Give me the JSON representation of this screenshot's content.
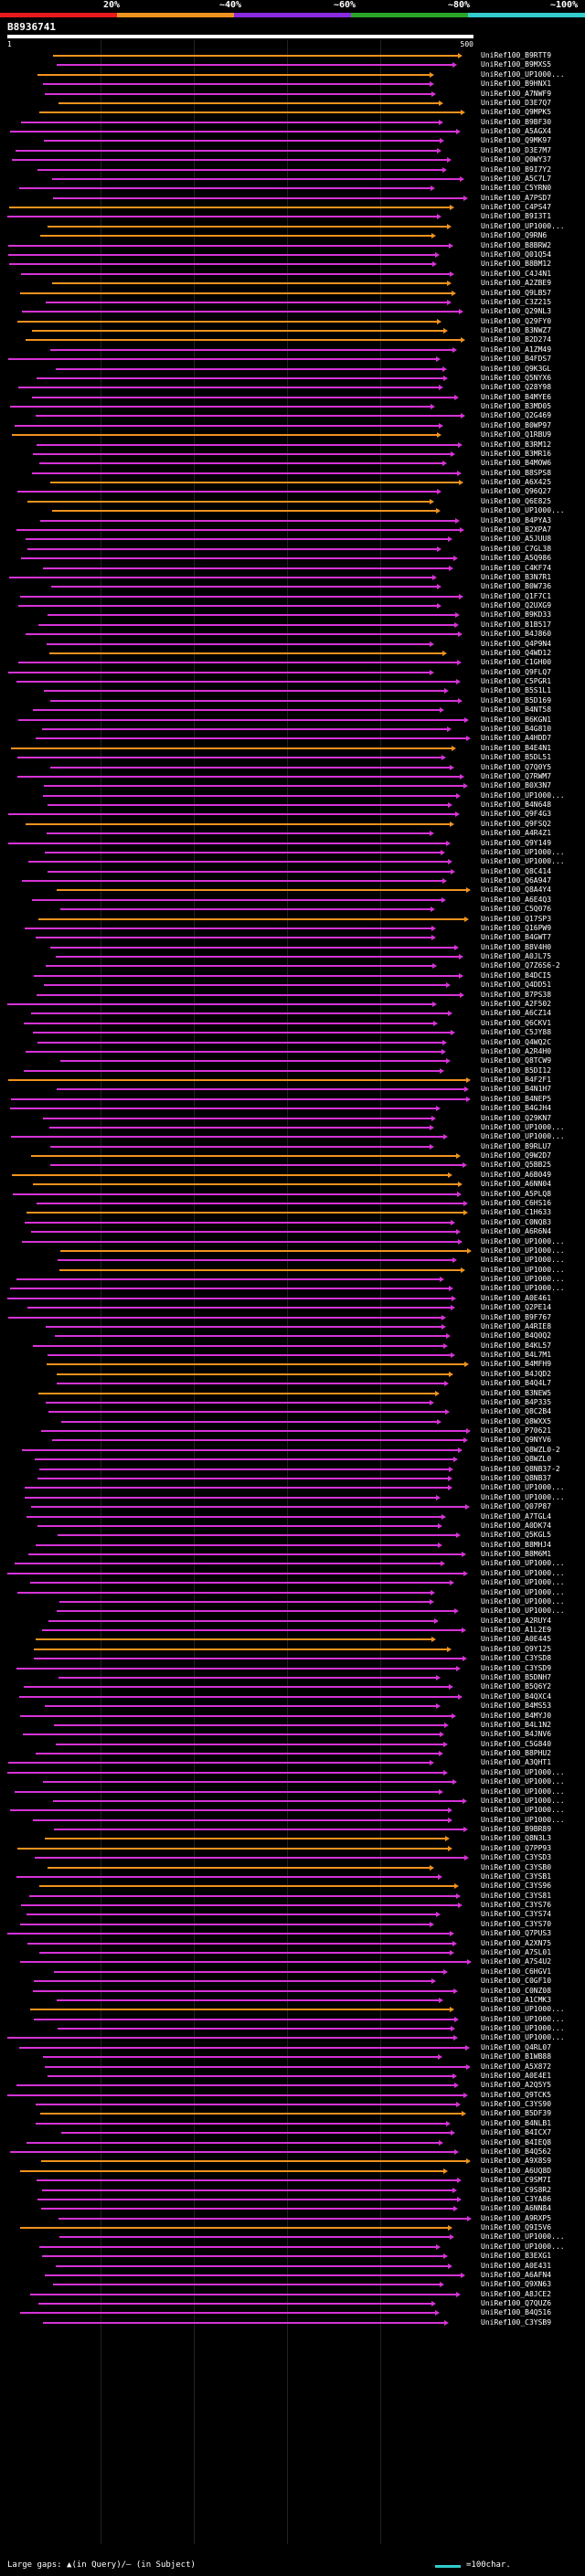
{
  "legend": {
    "labels": [
      "20%",
      "~40%",
      "~60%",
      "~80%",
      "~100%"
    ],
    "colors": [
      "#e8191e",
      "#f0921e",
      "#8a2be2",
      "#2aa52a",
      "#33cccc"
    ]
  },
  "query": {
    "id": "B8936741",
    "ruler_start": "1",
    "ruler_end": "500"
  },
  "hits": [
    "UniRef100_B9RTT9",
    "UniRef100_B9MXS5",
    "UniRef100_UP1000...",
    "UniRef100_B9HNX1",
    "UniRef100_A7NWF9",
    "UniRef100_D3E7Q7",
    "UniRef100_Q9MPK5",
    "UniRef100_B9BF30",
    "UniRef100_A5AGX4",
    "UniRef100_Q9MK97",
    "UniRef100_D3E7M7",
    "UniRef100_Q0WY37",
    "UniRef100_B9I7Y2",
    "UniRef100_A5C7L7",
    "UniRef100_C5YRN0",
    "UniRef100_A7PSD7",
    "UniRef100_C4PS47",
    "UniRef100_B9I3T1",
    "UniRef100_UP1000...",
    "UniRef100_Q9RN6",
    "UniRef100_B8BRW2",
    "UniRef100_Q01Q54",
    "UniRef100_B8BM12",
    "UniRef100_C4J4N1",
    "UniRef100_A2ZBE9",
    "UniRef100_Q9LB57",
    "UniRef100_C3Z215",
    "UniRef100_Q29NL3",
    "UniRef100_Q29FY0",
    "UniRef100_B3NWZ7",
    "UniRef100_B2D274",
    "UniRef100_A1ZM49",
    "UniRef100_B4FDS7",
    "UniRef100_Q9K3GL",
    "UniRef100_Q5NYX6",
    "UniRef100_Q28Y98",
    "UniRef100_B4MYE6",
    "UniRef100_B3MD05",
    "UniRef100_Q2G469",
    "UniRef100_B0WP97",
    "UniRef100_Q1RBU9",
    "UniRef100_B3RM12",
    "UniRef100_B3MR16",
    "UniRef100_B4MOW6",
    "UniRef100_B8SPS8",
    "UniRef100_A6X425",
    "UniRef100_Q96Q27",
    "UniRef100_Q6E825",
    "UniRef100_UP1000...",
    "UniRef100_B4PYA3",
    "UniRef100_B2XPA7",
    "UniRef100_A5JUU8",
    "UniRef100_C7GL38",
    "UniRef100_A5Q986",
    "UniRef100_C4KF74",
    "UniRef100_B3N7R1",
    "UniRef100_B0W736",
    "UniRef100_Q1F7C1",
    "UniRef100_Q2UXG9",
    "UniRef100_B9KD33",
    "UniRef100_B1B517",
    "UniRef100_B4J860",
    "UniRef100_Q4P9N4",
    "UniRef100_Q4WD12",
    "UniRef100_C1GH00",
    "UniRef100_Q9FLQ7",
    "UniRef100_C5PGR1",
    "UniRef100_B5S1L1",
    "UniRef100_B5D169",
    "UniRef100_B4NT58",
    "UniRef100_B6KGN1",
    "UniRef100_B4G810",
    "UniRef100_A4HDD7",
    "UniRef100_B4E4N1",
    "UniRef100_B5DL51",
    "UniRef100_Q7Q0Y5",
    "UniRef100_Q7RWM7",
    "UniRef100_B0X3N7",
    "UniRef100_UP1000...",
    "UniRef100_B4N648",
    "UniRef100_Q9F4G3",
    "UniRef100_Q9FSQ2",
    "UniRef100_A4R4Z1",
    "UniRef100_Q9Y149",
    "UniRef100_UP1000...",
    "UniRef100_UP1000...",
    "UniRef100_Q8C414",
    "UniRef100_Q6A947",
    "UniRef100_Q8A4Y4",
    "UniRef100_A6E4Q3",
    "UniRef100_C5Q076",
    "UniRef100_Q17SP3",
    "UniRef100_Q16PW9",
    "UniRef100_B4GWT7",
    "UniRef100_B8V4H0",
    "UniRef100_A0JL75",
    "UniRef100_Q7Z6S6-2",
    "UniRef100_B4DCI5",
    "UniRef100_Q4DD51",
    "UniRef100_B7PS38",
    "UniRef100_A2F502",
    "UniRef100_A6CZ14",
    "UniRef100_Q6CKV1",
    "UniRef100_C5JY88",
    "UniRef100_Q4WQ2C",
    "UniRef100_A2R4H0",
    "UniRef100_Q8TCW9",
    "UniRef100_B5DI12",
    "UniRef100_B4F2F1",
    "UniRef100_B4N1H7",
    "UniRef100_B4NEP5",
    "UniRef100_B4GJH4",
    "UniRef100_Q29KN7",
    "UniRef100_UP1000...",
    "UniRef100_UP1000...",
    "UniRef100_B9RLU7",
    "UniRef100_Q9W2D7",
    "UniRef100_Q5BB25",
    "UniRef100_A6B049",
    "UniRef100_A6NN04",
    "UniRef100_A5PLQ8",
    "UniRef100_C6HS16",
    "UniRef100_C1H633",
    "UniRef100_C0NQ83",
    "UniRef100_A6R6N4",
    "UniRef100_UP1000...",
    "UniRef100_UP1000...",
    "UniRef100_UP1000...",
    "UniRef100_UP1000...",
    "UniRef100_UP1000...",
    "UniRef100_UP1000...",
    "UniRef100_A0E461",
    "UniRef100_Q2PE14",
    "UniRef100_B9F767",
    "UniRef100_A4RIE8",
    "UniRef100_B4Q0Q2",
    "UniRef100_B4KL57",
    "UniRef100_B4L7M1",
    "UniRef100_B4MFH9",
    "UniRef100_B4JQD2",
    "UniRef100_B4Q4L7",
    "UniRef100_B3NEW5",
    "UniRef100_B4P335",
    "UniRef100_Q8C2B4",
    "UniRef100_Q8WXX5",
    "UniRef100_P70621",
    "UniRef100_Q9NYV6",
    "UniRef100_Q8WZL0-2",
    "UniRef100_Q8WZL0",
    "UniRef100_Q8NB37-2",
    "UniRef100_Q8NB37",
    "UniRef100_UP1000...",
    "UniRef100_UP1000...",
    "UniRef100_Q07P87",
    "UniRef100_A7TGL4",
    "UniRef100_A0DK74",
    "UniRef100_Q5KGL5",
    "UniRef100_B8MHJ4",
    "UniRef100_B8M6M1",
    "UniRef100_UP1000...",
    "UniRef100_UP1000...",
    "UniRef100_UP1000...",
    "UniRef100_UP1000...",
    "UniRef100_UP1000...",
    "UniRef100_UP1000...",
    "UniRef100_A2RUY4",
    "UniRef100_A1L2E9",
    "UniRef100_A0E445",
    "UniRef100_Q9Y125",
    "UniRef100_C3YSD8",
    "UniRef100_C3YSD9",
    "UniRef100_B5DNH7",
    "UniRef100_B5Q6Y2",
    "UniRef100_B4QXC4",
    "UniRef100_B4MS53",
    "UniRef100_B4MYJ0",
    "UniRef100_B4L1N2",
    "UniRef100_B4JNV6",
    "UniRef100_C5G840",
    "UniRef100_B8PHU2",
    "UniRef100_A3QHT1",
    "UniRef100_UP1000...",
    "UniRef100_UP1000...",
    "UniRef100_UP1000...",
    "UniRef100_UP1000...",
    "UniRef100_UP1000...",
    "UniRef100_UP1000...",
    "UniRef100_B9BR89",
    "UniRef100_Q8N3L3",
    "UniRef100_Q7PP93",
    "UniRef100_C3YSD3",
    "UniRef100_C3YSB0",
    "UniRef100_C3YSB1",
    "UniRef100_C3YS96",
    "UniRef100_C3YS81",
    "UniRef100_C3YS76",
    "UniRef100_C3YS74",
    "UniRef100_C3YS70",
    "UniRef100_Q7PUS3",
    "UniRef100_A2XN75",
    "UniRef100_A7SL01",
    "UniRef100_A7S4U2",
    "UniRef100_C6HGV1",
    "UniRef100_C0GF10",
    "UniRef100_C0NZ08",
    "UniRef100_A1CMK3",
    "UniRef100_UP1000...",
    "UniRef100_UP1000...",
    "UniRef100_UP1000...",
    "UniRef100_UP1000...",
    "UniRef100_Q4RL07",
    "UniRef100_B1WB88",
    "UniRef100_A5X872",
    "UniRef100_A0E4E1",
    "UniRef100_A2Q5Y5",
    "UniRef100_Q9TCK5",
    "UniRef100_C3YS90",
    "UniRef100_B5DF39",
    "UniRef100_B4NLB1",
    "UniRef100_B4ICX7",
    "UniRef100_B4IEQ8",
    "UniRef100_B4Q562",
    "UniRef100_A9X8S9",
    "UniRef100_A6UQ8D",
    "UniRef100_C9SM7I",
    "UniRef100_C9S8R2",
    "UniRef100_C3YA86",
    "UniRef100_A6NN84",
    "UniRef100_A9RXP5",
    "UniRef100_Q9I5V6",
    "UniRef100_UP1000...",
    "UniRef100_UP1000...",
    "UniRef100_B3EXG1",
    "UniRef100_A0E431",
    "UniRef100_A6AFN4",
    "UniRef100_Q9XN63",
    "UniRef100_A8JCE2",
    "UniRef100_Q7QUZ6",
    "UniRef100_B4Q516",
    "UniRef100_C3YSB9"
  ],
  "footer": {
    "text": "Large gaps: ▲(in Query)/‒ (in Subject)",
    "scale": "=100char."
  }
}
